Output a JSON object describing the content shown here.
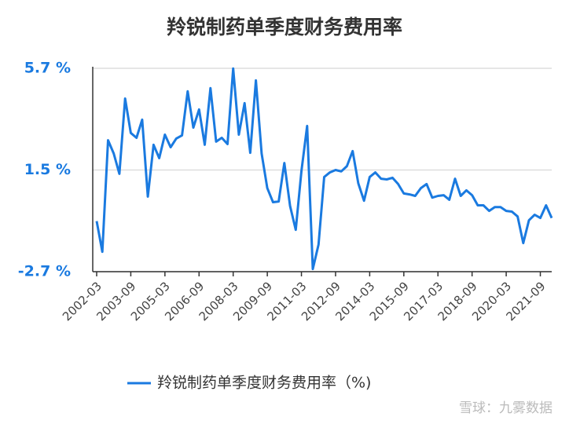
{
  "chart_data": {
    "type": "line",
    "title": "羚锐制药单季度财务费用率",
    "categories": [
      "2002-03",
      null,
      null,
      null,
      null,
      null,
      "2003-09",
      null,
      null,
      null,
      null,
      null,
      "2005-03",
      null,
      null,
      null,
      null,
      null,
      "2006-09",
      null,
      null,
      null,
      null,
      null,
      "2008-03",
      null,
      null,
      null,
      null,
      null,
      "2009-09",
      null,
      null,
      null,
      null,
      null,
      "2011-03",
      null,
      null,
      null,
      null,
      null,
      "2012-09",
      null,
      null,
      null,
      null,
      null,
      "2014-03",
      null,
      null,
      null,
      null,
      null,
      "2015-09",
      null,
      null,
      null,
      null,
      null,
      "2017-03",
      null,
      null,
      null,
      null,
      null,
      "2018-09",
      null,
      null,
      null,
      null,
      null,
      "2020-03",
      null,
      null,
      null,
      null,
      null,
      "2021-09",
      null,
      null
    ],
    "series": [
      {
        "name": "羚锐制药单季度财务费用率（%)",
        "color": "#1a7ae0",
        "values": [
          -0.61,
          -1.88,
          2.73,
          2.18,
          1.34,
          4.45,
          3.03,
          2.83,
          3.58,
          0.4,
          2.54,
          1.99,
          2.96,
          2.44,
          2.8,
          2.93,
          4.75,
          3.25,
          4.0,
          2.54,
          4.88,
          2.67,
          2.83,
          2.57,
          5.69,
          2.96,
          4.26,
          2.21,
          5.2,
          2.18,
          0.75,
          0.17,
          0.2,
          1.79,
          0.01,
          -0.97,
          1.47,
          3.32,
          -2.59,
          -1.58,
          1.21,
          1.4,
          1.5,
          1.44,
          1.66,
          2.28,
          0.95,
          0.23,
          1.21,
          1.4,
          1.14,
          1.11,
          1.18,
          0.92,
          0.53,
          0.49,
          0.43,
          0.75,
          0.92,
          0.36,
          0.43,
          0.46,
          0.27,
          1.14,
          0.43,
          0.66,
          0.46,
          0.04,
          0.04,
          -0.19,
          -0.03,
          -0.03,
          -0.19,
          -0.22,
          -0.42,
          -1.52,
          -0.58,
          -0.35,
          -0.48,
          0.04,
          -0.48
        ]
      }
    ],
    "ylim": [
      -2.7,
      5.7
    ],
    "yticks": [
      {
        "value": 5.7,
        "label": "5.7 %"
      },
      {
        "value": 1.5,
        "label": "1.5 %"
      },
      {
        "value": -2.7,
        "label": "-2.7 %"
      }
    ],
    "grid": true,
    "legend": "bottom",
    "watermark": "雪球：九雾数据"
  }
}
